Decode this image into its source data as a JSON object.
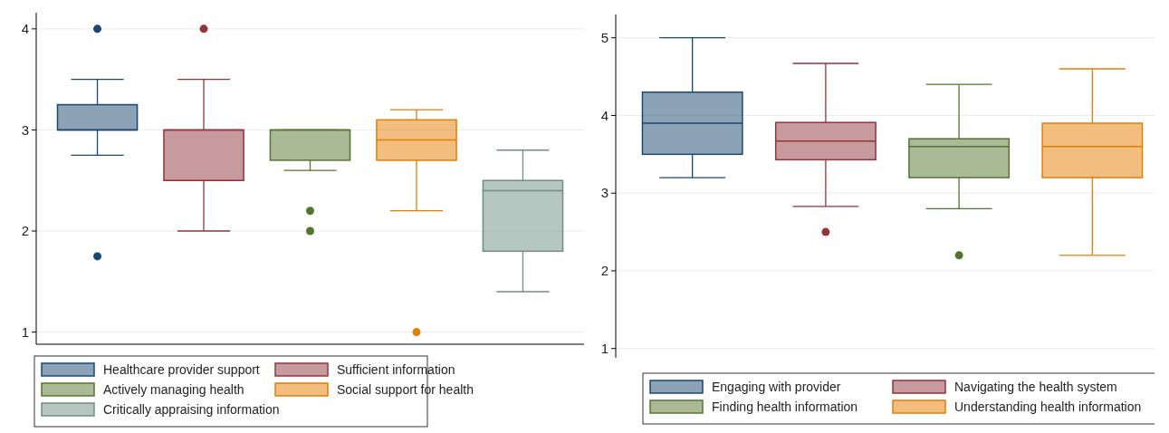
{
  "chart_data": [
    {
      "type": "box",
      "categories": [
        null,
        null,
        null,
        null,
        null
      ],
      "ylim": [
        0.88,
        4.16
      ],
      "yticks": [
        1,
        2,
        3,
        4
      ],
      "grid": "y",
      "tick_labels": "y",
      "legend": "bottom",
      "series": [
        {
          "name": "Healthcare provider support",
          "color": "#1a476f",
          "boxes": [
            {
              "low": 2.75,
              "q1": 3,
              "median": 3,
              "q3": 3.25,
              "high": 3.5,
              "outliers": [
                4,
                1.75
              ]
            },
            null,
            null,
            null,
            null
          ]
        },
        {
          "name": "Sufficient information",
          "color": "#90353b",
          "boxes": [
            null,
            {
              "low": 2,
              "q1": 2.5,
              "median": 3,
              "q3": 3,
              "high": 3.5,
              "outliers": [
                4
              ]
            },
            null,
            null,
            null
          ]
        },
        {
          "name": "Actively managing health",
          "color": "#55752f",
          "boxes": [
            null,
            null,
            {
              "low": 2.6,
              "q1": 2.7,
              "median": 3,
              "q3": 3,
              "high": 3,
              "outliers": [
                2.2,
                2
              ]
            },
            null,
            null
          ]
        },
        {
          "name": "Social support for health",
          "color": "#e37e00",
          "boxes": [
            null,
            null,
            null,
            {
              "low": 2.2,
              "q1": 2.7,
              "median": 2.9,
              "q3": 3.1,
              "high": 3.2,
              "outliers": [
                1
              ]
            },
            null
          ]
        },
        {
          "name": "Critically appraising information",
          "color": "#6e8e84",
          "boxes": [
            null,
            null,
            null,
            null,
            {
              "low": 1.4,
              "q1": 1.8,
              "median": 2.4,
              "q3": 2.5,
              "high": 2.8
            }
          ]
        }
      ]
    },
    {
      "type": "box",
      "categories": [
        null,
        null,
        null,
        null
      ],
      "ylim": [
        0.88,
        5.3
      ],
      "yticks": [
        1,
        2,
        3,
        4,
        5
      ],
      "grid": "y",
      "tick_labels": "y",
      "legend": "bottom",
      "series": [
        {
          "name": "Engaging with provider",
          "color": "#1a476f",
          "boxes": [
            {
              "low": 3.2,
              "q1": 3.5,
              "median": 3.9,
              "q3": 4.3,
              "high": 5
            },
            null,
            null,
            null
          ]
        },
        {
          "name": "Navigating the health system",
          "color": "#90353b",
          "boxes": [
            null,
            {
              "low": 2.83,
              "q1": 3.43,
              "median": 3.67,
              "q3": 3.91,
              "high": 4.67,
              "outliers": [
                2.5
              ]
            },
            null,
            null
          ]
        },
        {
          "name": "Finding health information",
          "color": "#55752f",
          "boxes": [
            null,
            null,
            {
              "low": 2.8,
              "q1": 3.2,
              "median": 3.6,
              "q3": 3.7,
              "high": 4.4,
              "outliers": [
                2.2
              ]
            },
            null
          ]
        },
        {
          "name": "Understanding health information",
          "color": "#e37e00",
          "boxes": [
            null,
            null,
            null,
            {
              "low": 2.2,
              "q1": 3.2,
              "median": 3.6,
              "q3": 3.9,
              "high": 4.6
            }
          ]
        }
      ]
    }
  ]
}
